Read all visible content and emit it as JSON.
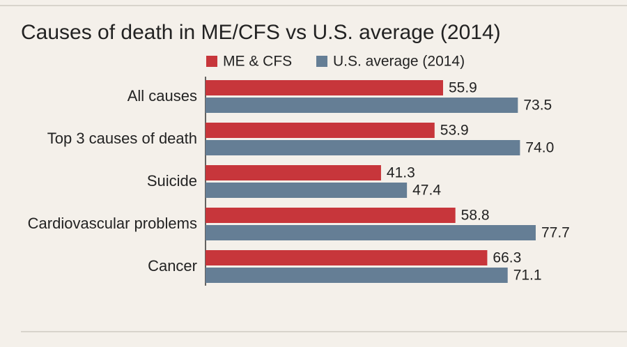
{
  "chart_data": {
    "type": "bar",
    "orientation": "horizontal",
    "title": "Causes of death in ME/CFS vs U.S. average (2014)",
    "categories": [
      "All causes",
      "Top 3 causes of death",
      "Suicide",
      "Cardiovascular problems",
      "Cancer"
    ],
    "series": [
      {
        "name": "ME & CFS",
        "color": "#c7363b",
        "values": [
          55.9,
          53.9,
          41.3,
          58.8,
          66.3
        ],
        "value_labels": [
          "55.9",
          "53.9",
          "41.3",
          "58.8",
          "66.3"
        ]
      },
      {
        "name": "U.S. average (2014)",
        "color": "#657e95",
        "values": [
          73.5,
          74.0,
          47.4,
          77.7,
          71.1
        ],
        "value_labels": [
          "73.5",
          "74.0",
          "47.4",
          "77.7",
          "71.1"
        ]
      }
    ]
  }
}
